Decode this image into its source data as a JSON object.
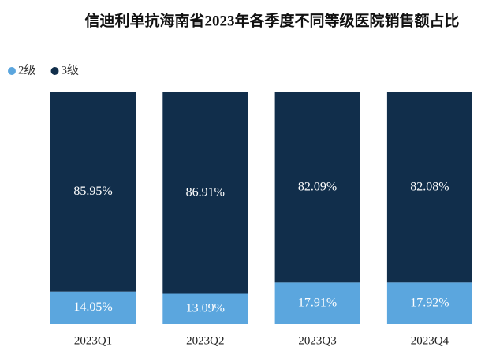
{
  "chart_data": {
    "type": "stacked_bar_100",
    "title": "信迪利单抗海南省2023年各季度不同等级医院销售额占比",
    "categories": [
      "2023Q1",
      "2023Q2",
      "2023Q3",
      "2023Q4"
    ],
    "series": [
      {
        "name": "2级",
        "color": "#5ba6de",
        "values": [
          14.05,
          13.09,
          17.91,
          17.92
        ],
        "value_labels": [
          "14.05%",
          "13.09%",
          "17.91%",
          "17.92%"
        ]
      },
      {
        "name": "3级",
        "color": "#112e4b",
        "values": [
          85.95,
          86.91,
          82.09,
          82.08
        ],
        "value_labels": [
          "85.95%",
          "86.91%",
          "82.09%",
          "82.08%"
        ]
      }
    ],
    "ylim": [
      0,
      100
    ],
    "legend": "top-left"
  }
}
